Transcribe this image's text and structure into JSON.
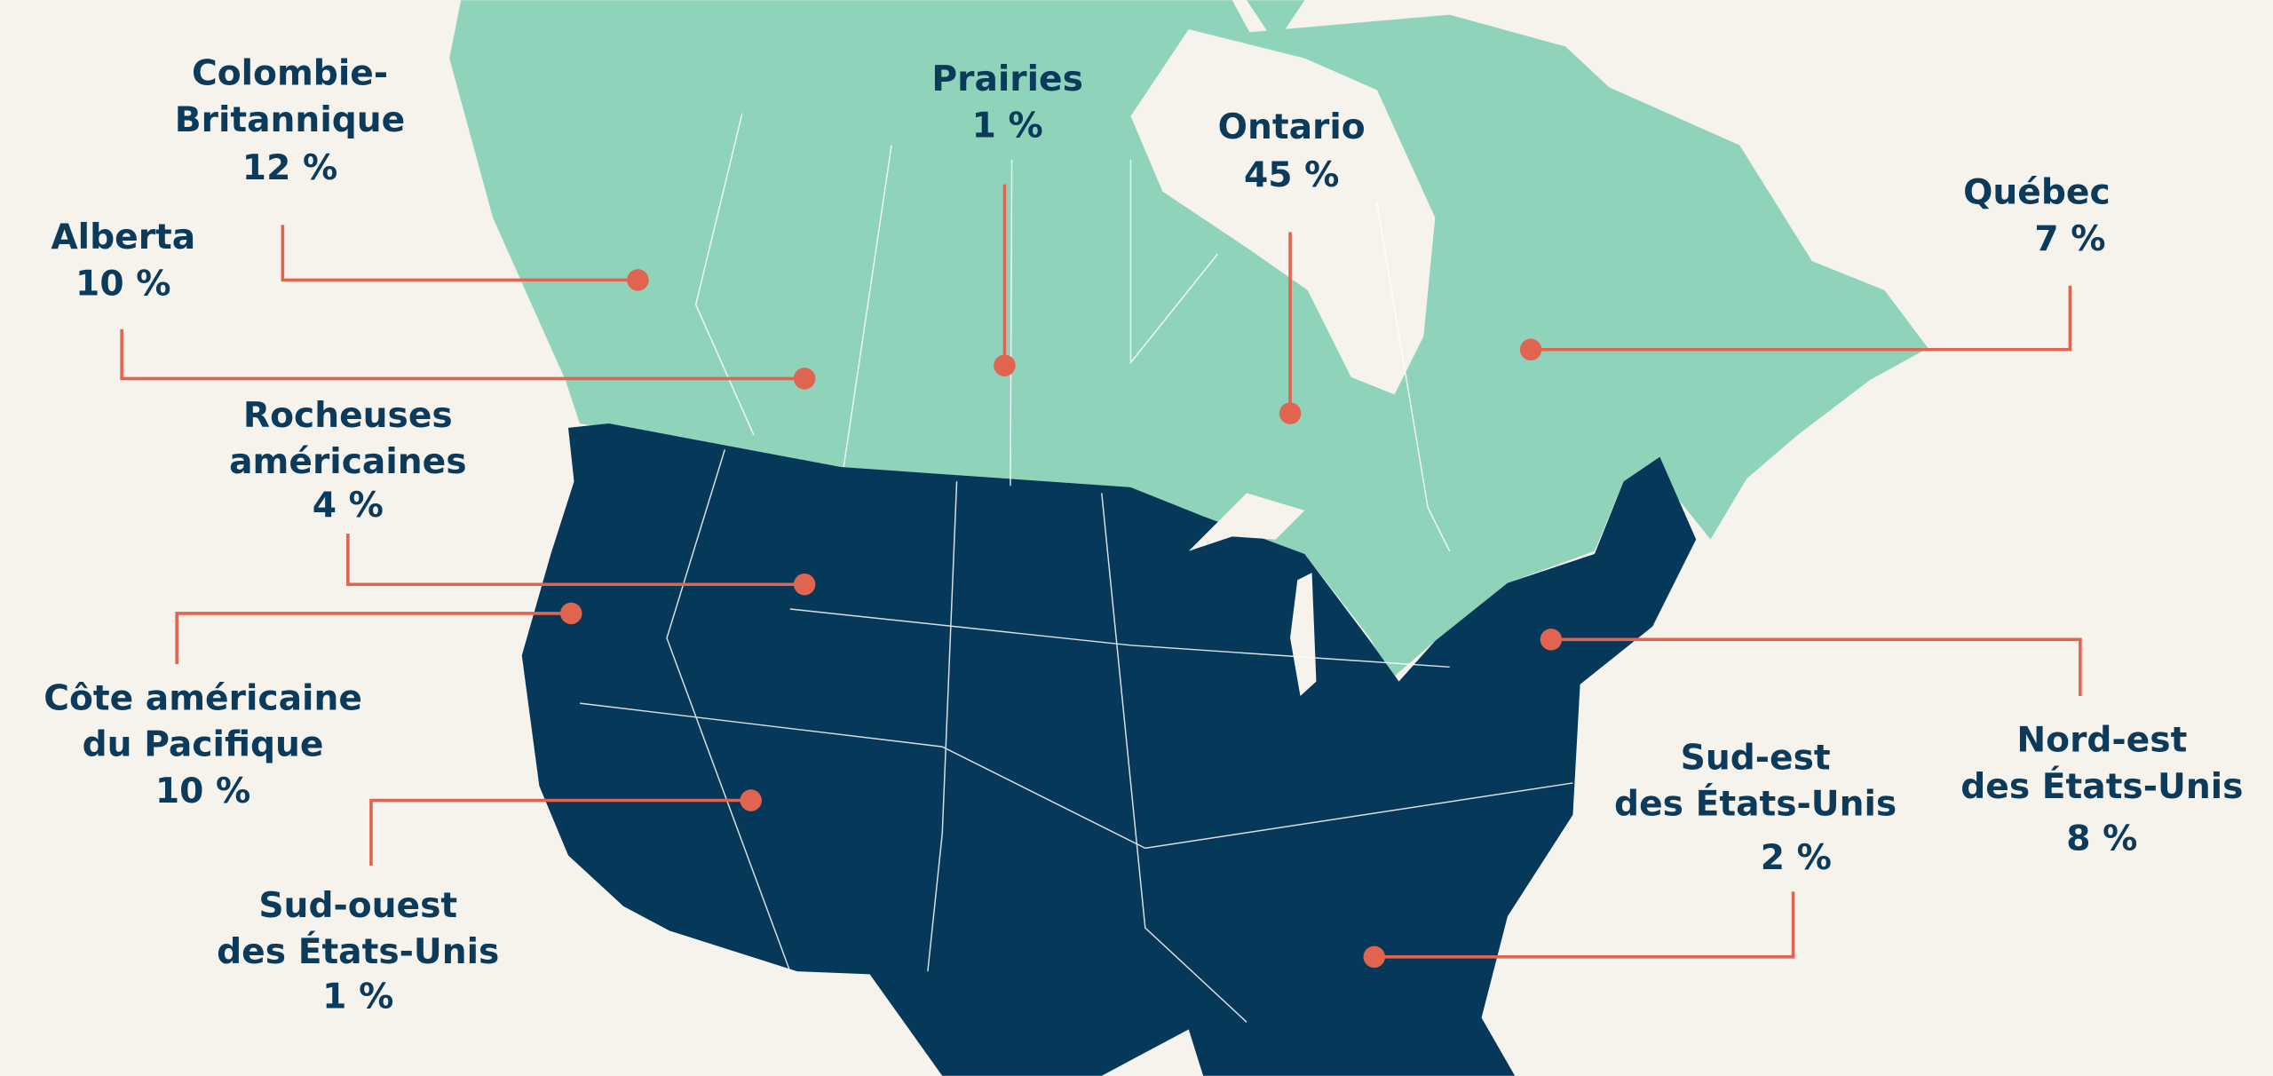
{
  "regions": [
    {
      "name": [
        "Colombie-",
        "Britannique"
      ],
      "share": "12 %"
    },
    {
      "name": [
        "Alberta"
      ],
      "share": "10 %"
    },
    {
      "name": [
        "Prairies"
      ],
      "share": "1 %"
    },
    {
      "name": [
        "Ontario"
      ],
      "share": "45 %"
    },
    {
      "name": [
        "Québec"
      ],
      "share": "7 %"
    },
    {
      "name": [
        "Rocheuses",
        "américaines"
      ],
      "share": "4 %"
    },
    {
      "name": [
        "Côte américaine",
        "du Pacifique"
      ],
      "share": "10 %"
    },
    {
      "name": [
        "Sud-ouest",
        "des États-Unis"
      ],
      "share": "1 %"
    },
    {
      "name": [
        "Sud-est",
        "des États-Unis"
      ],
      "share": "2 %"
    },
    {
      "name": [
        "Nord-est",
        "des États-Unis"
      ],
      "share": "8 %"
    }
  ]
}
